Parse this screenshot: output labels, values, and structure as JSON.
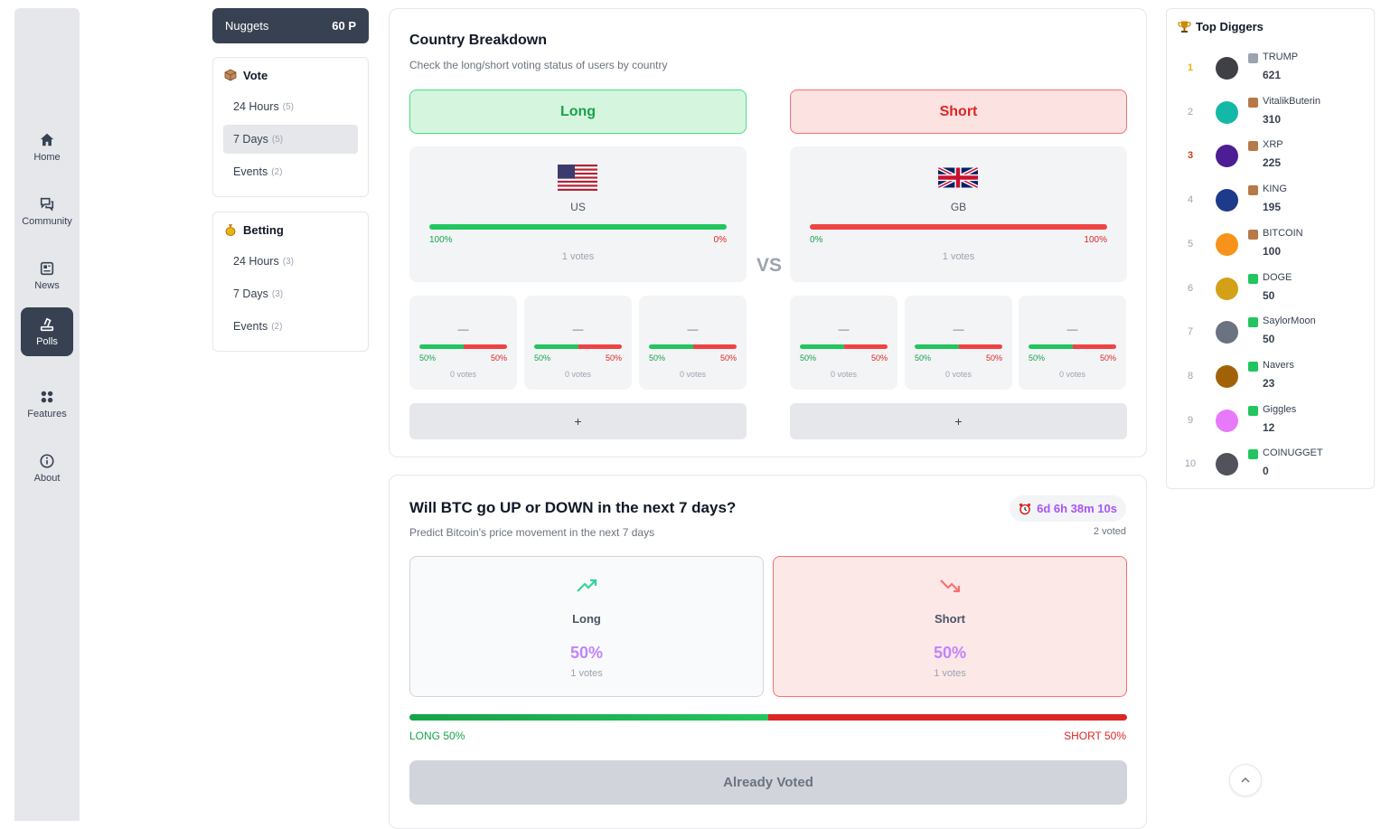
{
  "nav": {
    "items": [
      {
        "label": "Home",
        "icon": "home-icon"
      },
      {
        "label": "Community",
        "icon": "chat-icon"
      },
      {
        "label": "News",
        "icon": "news-icon"
      },
      {
        "label": "Polls",
        "icon": "polls-icon",
        "active": true
      },
      {
        "label": "Features",
        "icon": "grid-icon"
      },
      {
        "label": "About",
        "icon": "info-icon"
      }
    ]
  },
  "nuggets": {
    "label": "Nuggets",
    "points": "60 P"
  },
  "vote": {
    "title": "Vote",
    "items": [
      {
        "label": "24 Hours",
        "count": "(5)"
      },
      {
        "label": "7 Days",
        "count": "(5)",
        "active": true
      },
      {
        "label": "Events",
        "count": "(2)"
      }
    ]
  },
  "betting": {
    "title": "Betting",
    "items": [
      {
        "label": "24 Hours",
        "count": "(3)"
      },
      {
        "label": "7 Days",
        "count": "(3)"
      },
      {
        "label": "Events",
        "count": "(2)"
      }
    ]
  },
  "breakdown": {
    "title": "Country Breakdown",
    "subtitle": "Check the long/short voting status of users by country",
    "long_label": "Long",
    "short_label": "Short",
    "vs": "VS",
    "long_side": {
      "country": "US",
      "pct_long": "100%",
      "pct_short": "0%",
      "long_fraction": 1.0,
      "votes": "1 votes",
      "slots": [
        {
          "dash": "—",
          "pl": "50%",
          "pr": "50%",
          "votes": "0 votes"
        },
        {
          "dash": "—",
          "pl": "50%",
          "pr": "50%",
          "votes": "0 votes"
        },
        {
          "dash": "—",
          "pl": "50%",
          "pr": "50%",
          "votes": "0 votes"
        }
      ],
      "add": "+"
    },
    "short_side": {
      "country": "GB",
      "pct_long": "0%",
      "pct_short": "100%",
      "long_fraction": 0.0,
      "votes": "1 votes",
      "slots": [
        {
          "dash": "—",
          "pl": "50%",
          "pr": "50%",
          "votes": "0 votes"
        },
        {
          "dash": "—",
          "pl": "50%",
          "pr": "50%",
          "votes": "0 votes"
        },
        {
          "dash": "—",
          "pl": "50%",
          "pr": "50%",
          "votes": "0 votes"
        }
      ],
      "add": "+"
    }
  },
  "poll": {
    "title": "Will BTC go UP or DOWN in the next 7 days?",
    "subtitle": "Predict Bitcoin's price movement in the next 7 days",
    "timer": "6d 6h 38m 10s",
    "voted_count": "2 voted",
    "long": {
      "label": "Long",
      "pct": "50%",
      "votes": "1 votes"
    },
    "short": {
      "label": "Short",
      "pct": "50%",
      "votes": "1 votes"
    },
    "long_fraction": 0.5,
    "bar_long_label": "LONG 50%",
    "bar_short_label": "SHORT 50%",
    "button": "Already Voted"
  },
  "diggers": {
    "title": "Top Diggers",
    "rows": [
      {
        "rank": "1",
        "name": "TRUMP",
        "score": "621",
        "badge": "#9ca3af"
      },
      {
        "rank": "2",
        "name": "VitalikButerin",
        "score": "310",
        "badge": "#b7794a"
      },
      {
        "rank": "3",
        "name": "XRP",
        "score": "225",
        "badge": "#b7794a"
      },
      {
        "rank": "4",
        "name": "KING",
        "score": "195",
        "badge": "#b7794a"
      },
      {
        "rank": "5",
        "name": "BITCOIN",
        "score": "100",
        "badge": "#b7794a"
      },
      {
        "rank": "6",
        "name": "DOGE",
        "score": "50",
        "badge": "#22c55e"
      },
      {
        "rank": "7",
        "name": "SaylorMoon",
        "score": "50",
        "badge": "#22c55e"
      },
      {
        "rank": "8",
        "name": "Navers",
        "score": "23",
        "badge": "#22c55e"
      },
      {
        "rank": "9",
        "name": "Giggles",
        "score": "12",
        "badge": "#22c55e"
      },
      {
        "rank": "10",
        "name": "COINUGGET",
        "score": "0",
        "badge": "#22c55e"
      }
    ]
  },
  "colors": {
    "long": "#22c55e",
    "short": "#ef4444",
    "accent": "#a855f7",
    "nav_active": "#374151"
  }
}
